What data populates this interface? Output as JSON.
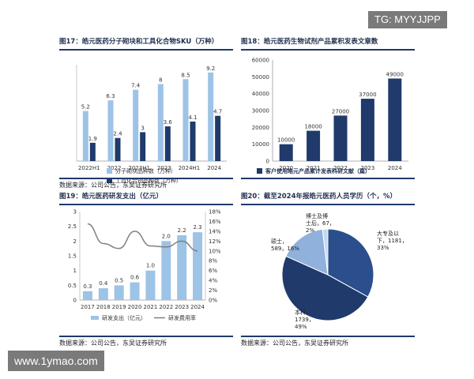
{
  "watermark_top": "TG: MYYJJPP",
  "watermark_bottom": "www.1ymao.com",
  "chart_data": [
    {
      "type": "bar",
      "title": "图17：皓元医药分子砌块和工具化合物SKU（万种）",
      "categories": [
        "2022H1",
        "2022",
        "2023H1",
        "2023",
        "2024H1",
        "2024"
      ],
      "series": [
        {
          "name": "分子砌块品种数（万种）",
          "values": [
            5.2,
            6.3,
            7.4,
            8,
            8.5,
            9.2
          ],
          "color": "#9dc3e6"
        },
        {
          "name": "工具化合物品种数（万种）",
          "values": [
            1.9,
            2.4,
            3,
            3.6,
            4.1,
            4.7
          ],
          "color": "#1f3a6b"
        }
      ],
      "ylim": [
        0,
        10
      ],
      "legend_placement": "bottom",
      "source": "数据来源：公司公告，东吴证券研究所"
    },
    {
      "type": "bar",
      "title": "图18：皓元医药生物试剂产品累积发表文章数",
      "categories": [
        "2020",
        "2021",
        "2022",
        "2023",
        "2024"
      ],
      "series": [
        {
          "name": "客户使用皓元产品累计发表科研文献（篇）",
          "values": [
            10000,
            18000,
            27000,
            37000,
            49000
          ],
          "color": "#1f3a6b"
        }
      ],
      "yticks": [
        "0",
        "10000",
        "20000",
        "30000",
        "40000",
        "50000",
        "60000"
      ],
      "ylim": [
        0,
        60000
      ],
      "legend_placement": "bottom",
      "source": ""
    },
    {
      "type": "bar",
      "title": "图19：皓元医药研发支出（亿元）",
      "categories": [
        "2017",
        "2018",
        "2019",
        "2020",
        "2021",
        "2022",
        "2023",
        "2024"
      ],
      "series": [
        {
          "name": "研发支出（亿元）",
          "values": [
            0.3,
            0.4,
            0.5,
            0.6,
            1.0,
            2.0,
            2.2,
            2.3
          ],
          "color": "#9dc3e6"
        },
        {
          "name": "研发费用率",
          "values": [
            15.5,
            11.5,
            10.5,
            14.0,
            11.0,
            10.8,
            12.0,
            10.0
          ],
          "color": "#7f7f7f",
          "kind": "line"
        }
      ],
      "yticks_left": [
        "0",
        "0.5",
        "1",
        "1.5",
        "2",
        "2.5",
        "3"
      ],
      "ylim_left": [
        0,
        3
      ],
      "yticks_right": [
        "0%",
        "2%",
        "4%",
        "6%",
        "8%",
        "10%",
        "12%",
        "14%",
        "16%",
        "18%"
      ],
      "ylim_right": [
        0,
        18
      ],
      "legend_placement": "bottom",
      "source": "数据来源：公司公告，东吴证券研究所"
    },
    {
      "type": "pie",
      "title": "图20：截至2024年报皓元医药人员学历（个，%）",
      "slices": [
        {
          "label": "大专及以下",
          "value": 1181,
          "pct": "33%",
          "color": "#2b4e8c",
          "label_text": [
            "大专及以",
            "下，1181，",
            "33%"
          ]
        },
        {
          "label": "本科",
          "value": 1739,
          "pct": "49%",
          "color": "#1f3a6b",
          "label_text": [
            "本科，",
            "1739，",
            "49%"
          ]
        },
        {
          "label": "硕士",
          "value": 589,
          "pct": "16%",
          "color": "#8fb1dc",
          "label_text": [
            "硕士，",
            "589，16%"
          ]
        },
        {
          "label": "博士及博士后",
          "value": 67,
          "pct": "2%",
          "color": "#c5d9ee",
          "label_text": [
            "博士及博",
            "士后，67，",
            "2%"
          ]
        }
      ],
      "source": "数据来源：公司公告，东吴证券研究所"
    }
  ]
}
